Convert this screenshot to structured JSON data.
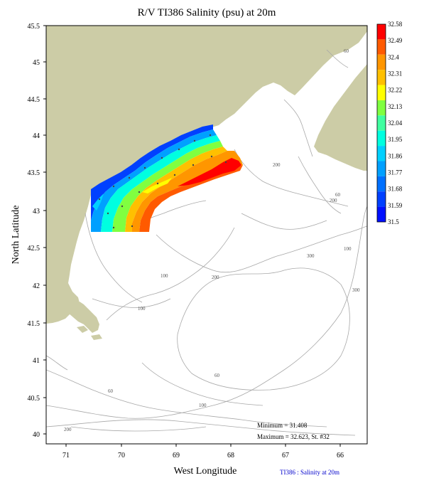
{
  "title": "R/V TI386 Salinity (psu) at 20m",
  "xlabel": "West Longitude",
  "ylabel": "North Latitude",
  "lon_ticks": [
    "71",
    "70",
    "69",
    "68",
    "67",
    "66"
  ],
  "lat_ticks": [
    "45.5",
    "45",
    "44.5",
    "44",
    "43.5",
    "43",
    "42.5",
    "42",
    "41.5",
    "41",
    "40.5",
    "40"
  ],
  "colorbar": {
    "labels": [
      "32.58",
      "32.49",
      "32.4",
      "32.31",
      "32.22",
      "32.13",
      "32.04",
      "31.95",
      "31.86",
      "31.77",
      "31.68",
      "31.59",
      "31.5"
    ],
    "colors": [
      "#ff0000",
      "#ff5a00",
      "#ff9600",
      "#ffc000",
      "#ffff00",
      "#80ff40",
      "#40ffa0",
      "#00ffe0",
      "#00d0ff",
      "#00a0ff",
      "#0070ff",
      "#0040ff",
      "#0010ff"
    ]
  },
  "contour_labels": [
    "60",
    "200",
    "60",
    "200",
    "100",
    "200",
    "300",
    "100",
    "200",
    "100",
    "300",
    "60",
    "60",
    "100",
    "200"
  ],
  "stats": {
    "minimum": "Minimum = 31.408",
    "maximum": "Maximum = 32.623, St. #32"
  },
  "footer": "TI386 : Salinity at 20m",
  "colors": {
    "land": "#cccca6",
    "contour": "#a8a8a8"
  }
}
